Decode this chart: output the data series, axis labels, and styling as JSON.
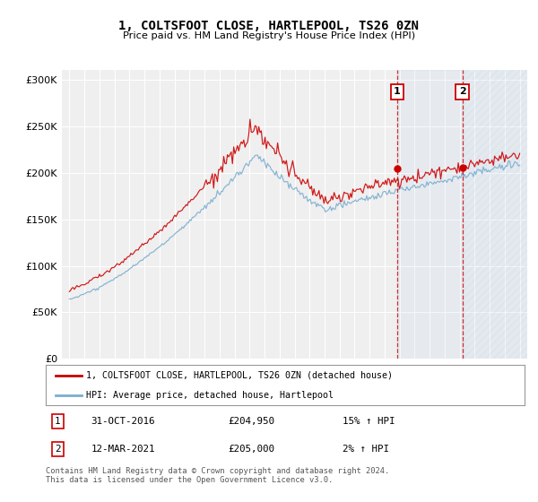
{
  "title": "1, COLTSFOOT CLOSE, HARTLEPOOL, TS26 0ZN",
  "subtitle": "Price paid vs. HM Land Registry's House Price Index (HPI)",
  "legend_line1": "1, COLTSFOOT CLOSE, HARTLEPOOL, TS26 0ZN (detached house)",
  "legend_line2": "HPI: Average price, detached house, Hartlepool",
  "annotation1_date": "31-OCT-2016",
  "annotation1_price": "£204,950",
  "annotation1_hpi": "15% ↑ HPI",
  "annotation2_date": "12-MAR-2021",
  "annotation2_price": "£205,000",
  "annotation2_hpi": "2% ↑ HPI",
  "footer": "Contains HM Land Registry data © Crown copyright and database right 2024.\nThis data is licensed under the Open Government Licence v3.0.",
  "red_color": "#cc0000",
  "blue_color": "#7aadcf",
  "ylim": [
    0,
    310000
  ],
  "yticks": [
    0,
    50000,
    100000,
    150000,
    200000,
    250000,
    300000
  ],
  "background_color": "#ffffff",
  "plot_bg_color": "#efefef",
  "grid_color": "#ffffff",
  "year_start": 1995,
  "year_end": 2025,
  "sale1_year": 2016.83,
  "sale2_year": 2021.17,
  "sale1_price": 204950,
  "sale2_price": 205000
}
